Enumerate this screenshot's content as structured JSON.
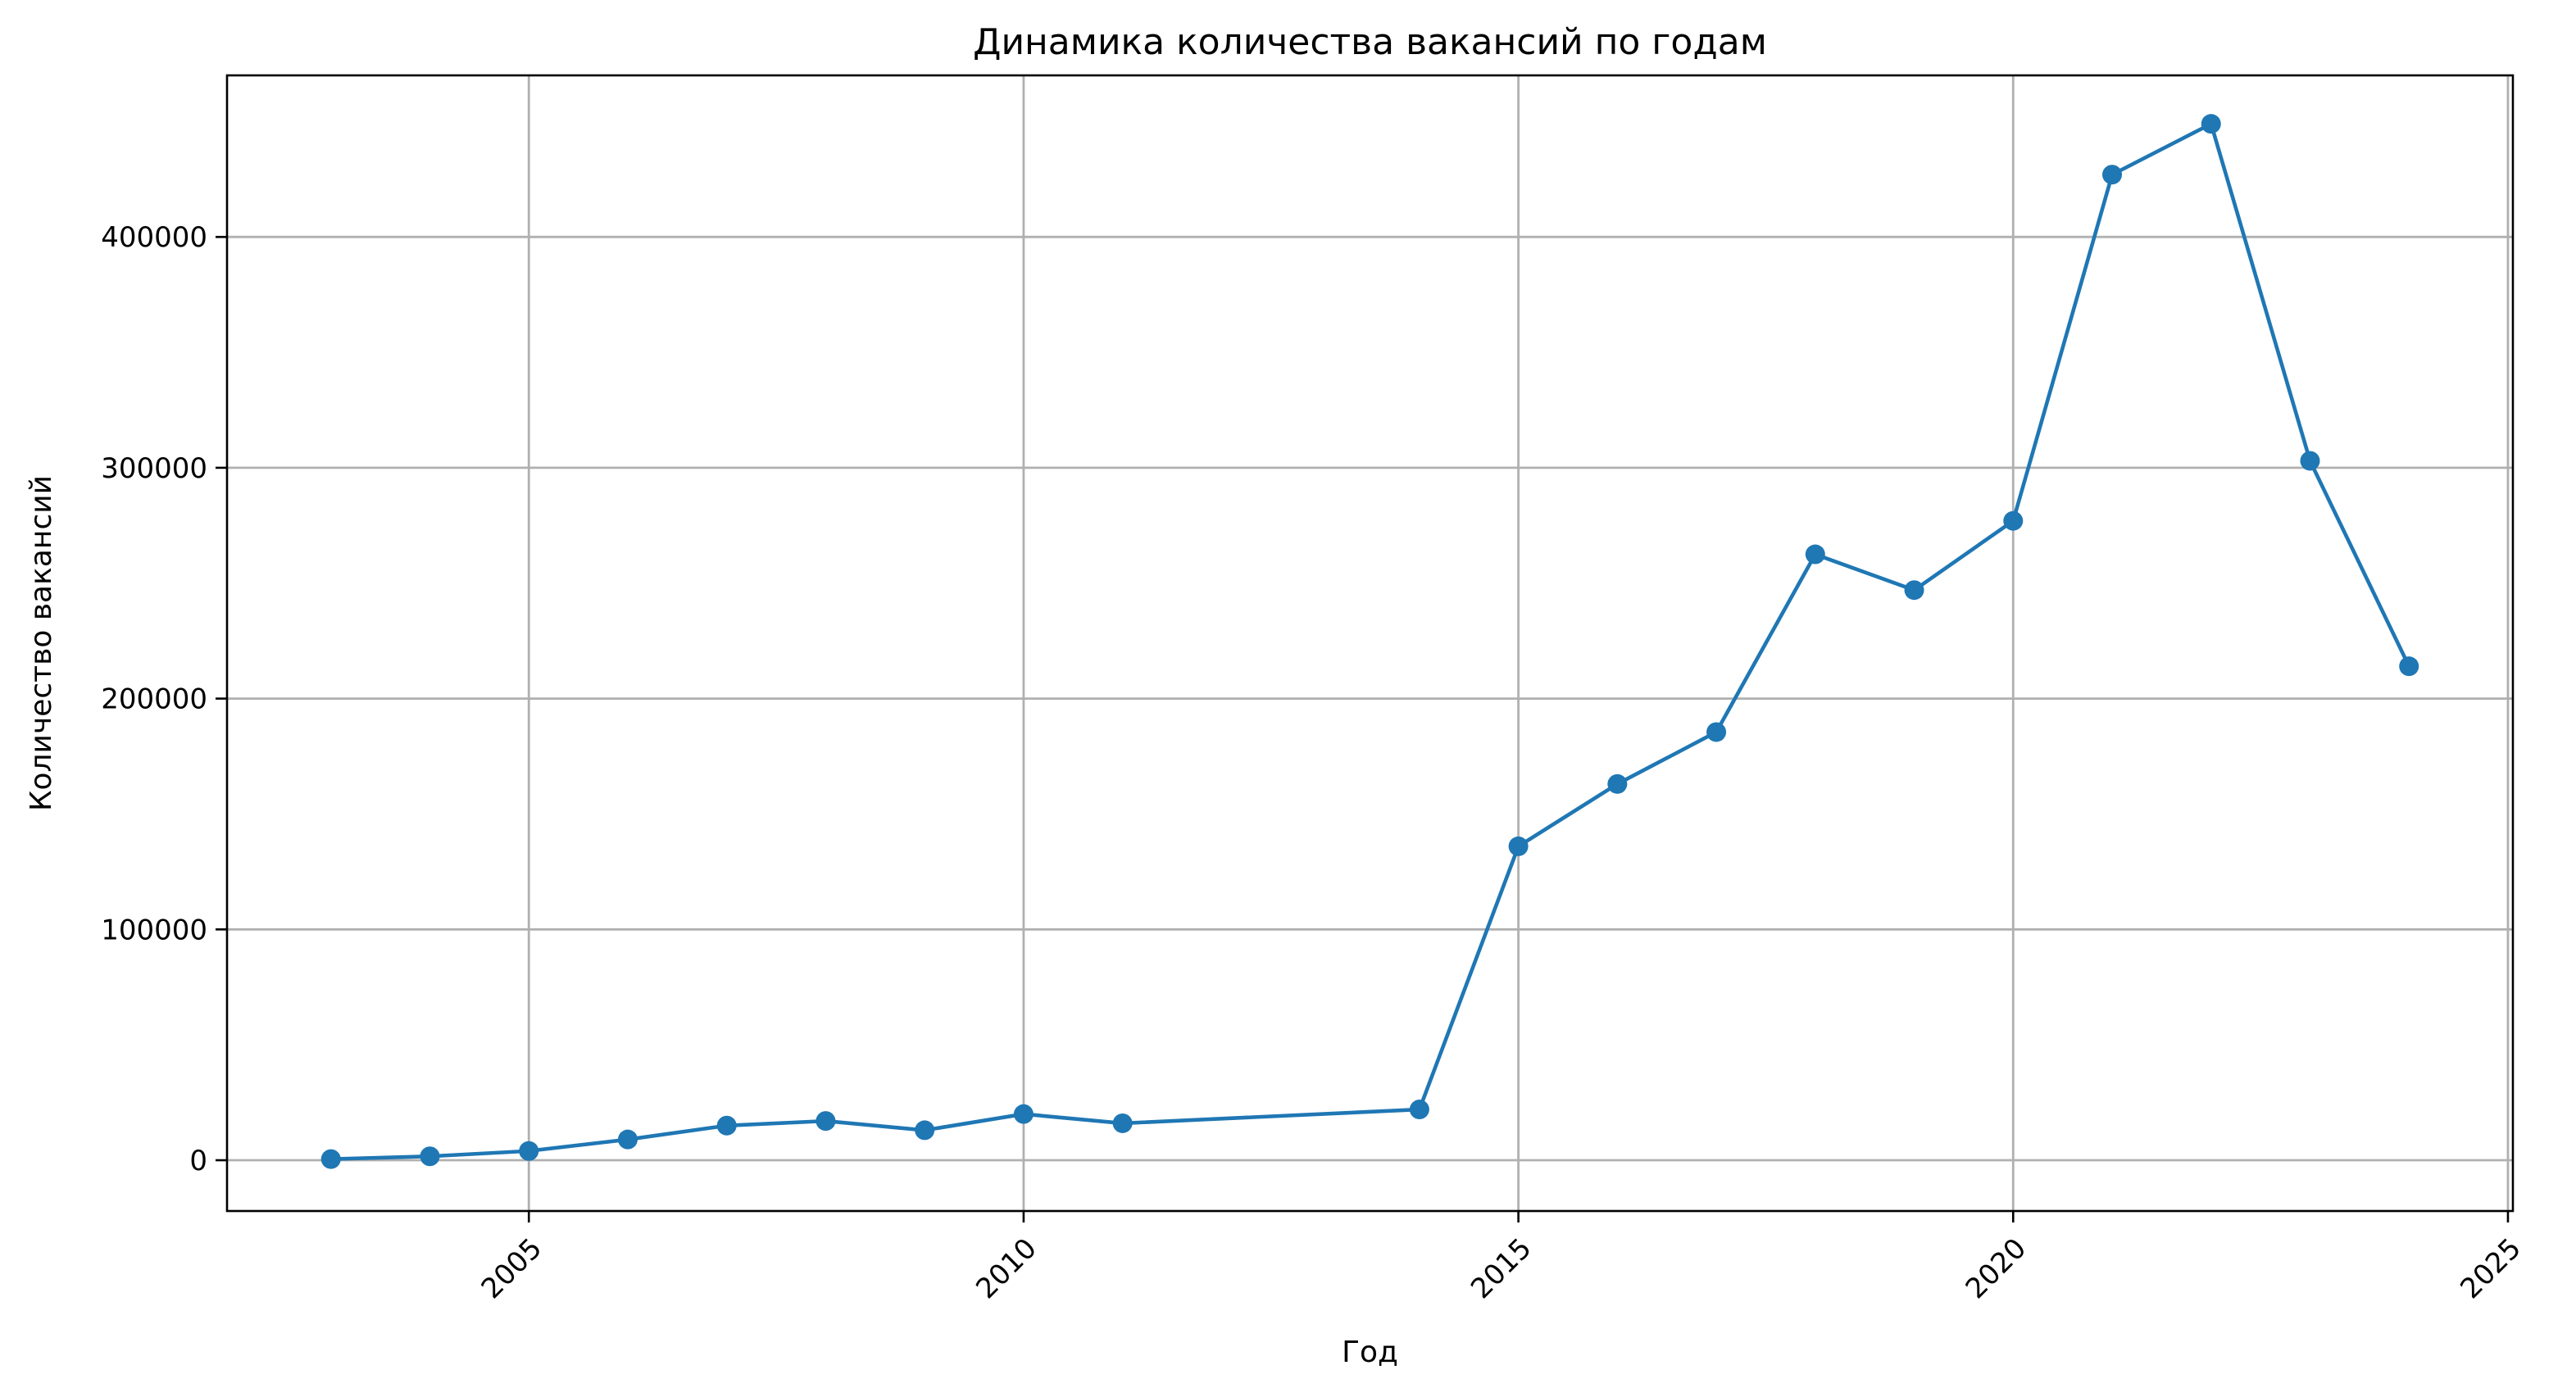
{
  "chart_data": {
    "type": "line",
    "title": "Динамика количества вакансий по годам",
    "xlabel": "Год",
    "ylabel": "Количество вакансий",
    "xlim": [
      2001.95,
      2025.05
    ],
    "ylim": [
      -22000,
      470000
    ],
    "xticks": [
      2005,
      2010,
      2015,
      2020,
      2025
    ],
    "xtick_labels": [
      "2005",
      "2010",
      "2015",
      "2020",
      "2025"
    ],
    "xtick_rotation_deg": 45,
    "yticks": [
      0,
      100000,
      200000,
      300000,
      400000
    ],
    "ytick_labels": [
      "0",
      "100000",
      "200000",
      "300000",
      "400000"
    ],
    "grid": true,
    "legend": "none",
    "series": [
      {
        "color": "#1f77b4",
        "marker": "circle",
        "x": [
          2003,
          2004,
          2005,
          2006,
          2007,
          2008,
          2009,
          2010,
          2011,
          2014,
          2015,
          2016,
          2017,
          2018,
          2019,
          2020,
          2021,
          2022,
          2023,
          2024
        ],
        "y": [
          500,
          1700,
          4000,
          9000,
          15000,
          17000,
          13000,
          20000,
          16000,
          22000,
          136000,
          163000,
          185500,
          262500,
          247000,
          277000,
          427000,
          449000,
          303000,
          214000
        ]
      }
    ]
  }
}
